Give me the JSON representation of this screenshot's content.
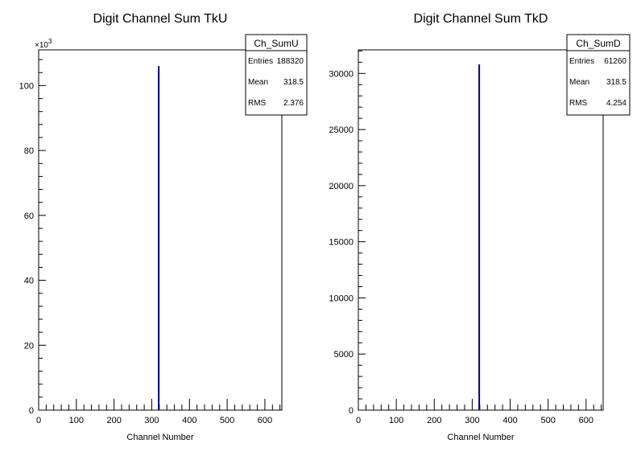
{
  "chart_data": [
    {
      "type": "bar",
      "title": "Digit Channel Sum TkU",
      "xlabel": "Channel Number",
      "ylabel": "",
      "xlim": [
        0,
        645
      ],
      "ylim": [
        0,
        111000
      ],
      "y_multiplier_label": "×10",
      "y_multiplier_exp": "3",
      "x_ticks": [
        0,
        100,
        200,
        300,
        400,
        500,
        600
      ],
      "y_ticks": [
        0,
        20000,
        40000,
        60000,
        80000,
        100000
      ],
      "y_tick_labels": [
        "0",
        "20",
        "40",
        "60",
        "80",
        "100"
      ],
      "series": [
        {
          "x": [
            318
          ],
          "values": [
            106000
          ],
          "color": "#000080"
        }
      ],
      "stats": {
        "name": "Ch_SumU",
        "rows": [
          {
            "label": "Entries",
            "value": "188320"
          },
          {
            "label": "Mean",
            "value": "318.5"
          },
          {
            "label": "RMS",
            "value": "2.376"
          }
        ]
      }
    },
    {
      "type": "bar",
      "title": "Digit Channel Sum TkD",
      "xlabel": "Channel Number",
      "ylabel": "",
      "xlim": [
        0,
        645
      ],
      "ylim": [
        0,
        32100
      ],
      "y_multiplier_label": "",
      "y_multiplier_exp": "",
      "x_ticks": [
        0,
        100,
        200,
        300,
        400,
        500,
        600
      ],
      "y_ticks": [
        0,
        5000,
        10000,
        15000,
        20000,
        25000,
        30000
      ],
      "y_tick_labels": [
        "0",
        "5000",
        "10000",
        "15000",
        "20000",
        "25000",
        "30000"
      ],
      "series": [
        {
          "x": [
            318
          ],
          "values": [
            30800
          ],
          "color": "#000080"
        }
      ],
      "stats": {
        "name": "Ch_SumD",
        "rows": [
          {
            "label": "Entries",
            "value": "61260"
          },
          {
            "label": "Mean",
            "value": "318.5"
          },
          {
            "label": "RMS",
            "value": "4.254"
          }
        ]
      }
    }
  ]
}
